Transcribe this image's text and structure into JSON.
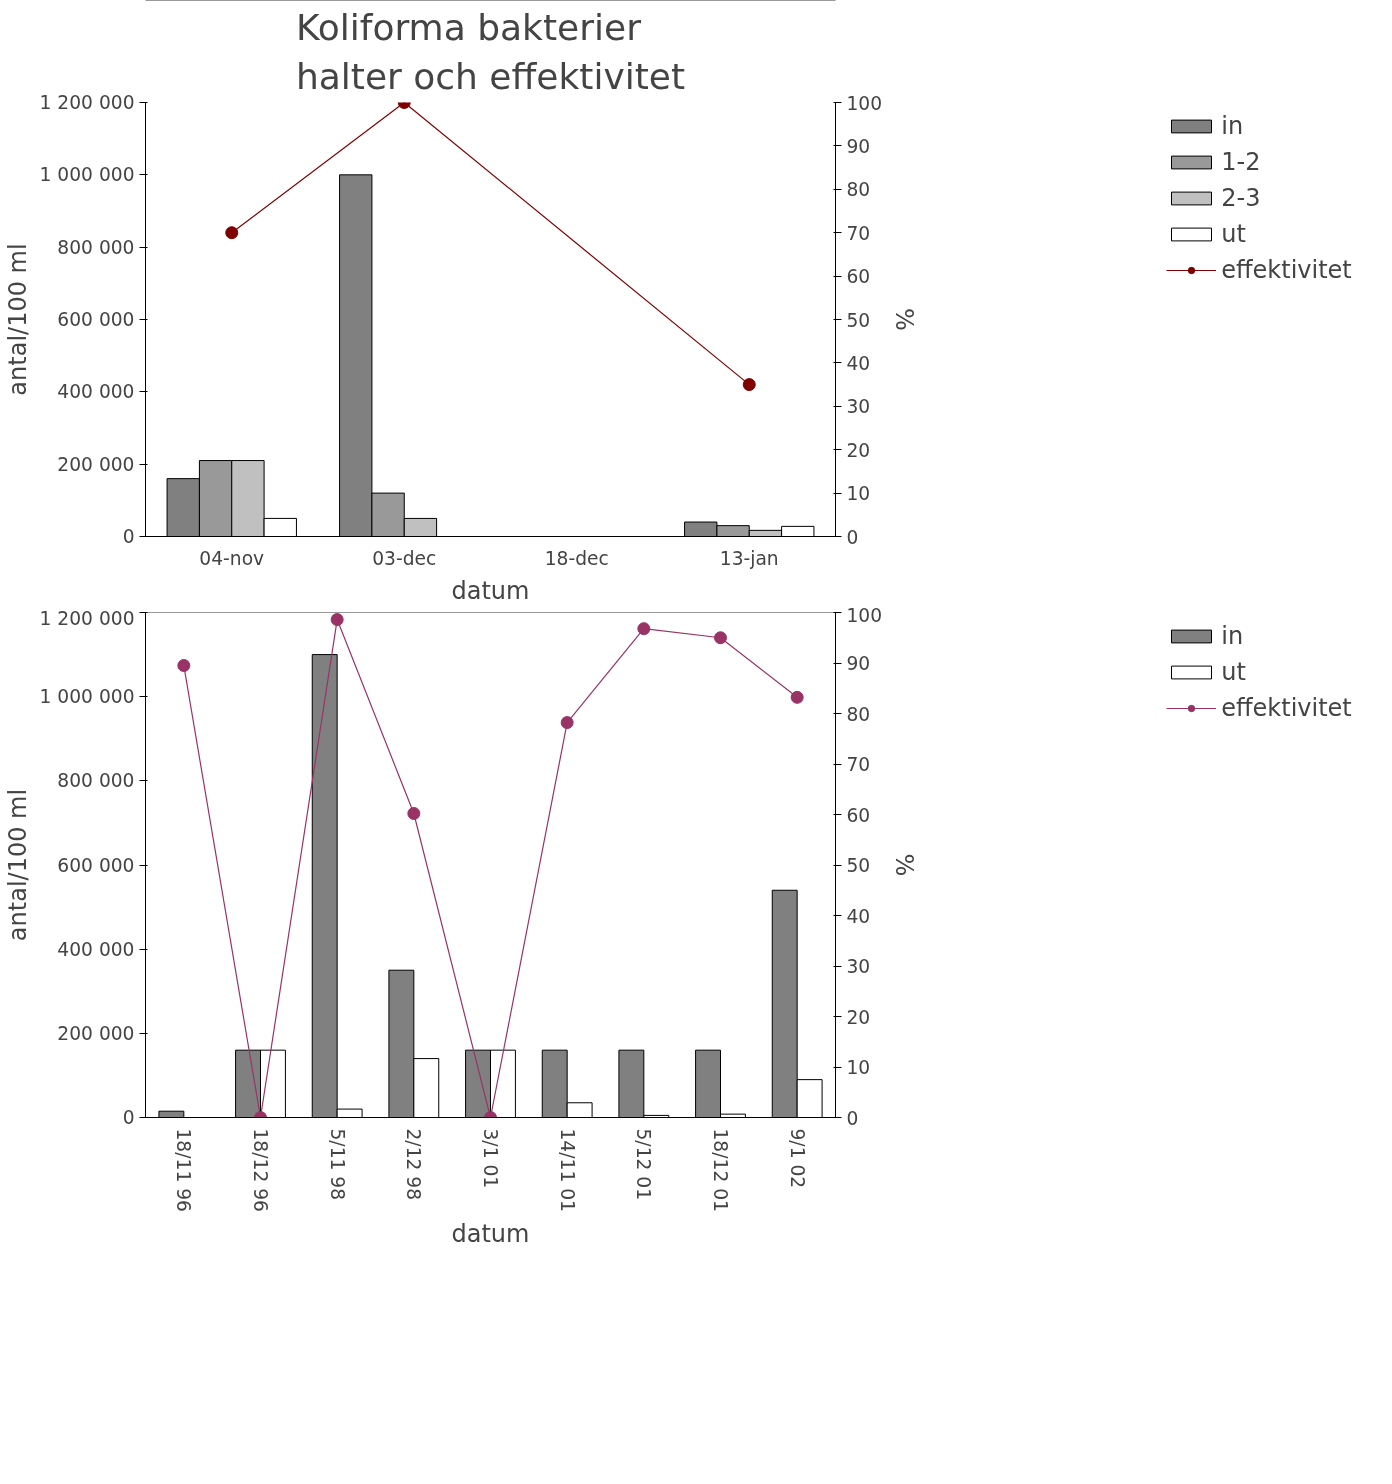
{
  "chart_data": [
    {
      "type": "bar",
      "title": "Koliforma bakterier\nhalter och effektivitet",
      "xlabel": "datum",
      "ylabel": "antal/100 ml",
      "y2label": "%",
      "categories": [
        "04-nov",
        "03-dec",
        "18-dec",
        "13-jan"
      ],
      "series": [
        {
          "name": "in",
          "color": "#808080",
          "values": [
            160000,
            1000000,
            null,
            40000
          ]
        },
        {
          "name": "1-2",
          "color": "#999999",
          "values": [
            210000,
            120000,
            null,
            30000
          ]
        },
        {
          "name": "2-3",
          "color": "#c0c0c0",
          "values": [
            210000,
            50000,
            null,
            17000
          ]
        },
        {
          "name": "ut",
          "color": "#ffffff",
          "values": [
            50000,
            null,
            null,
            28000
          ]
        },
        {
          "name": "effektivitet",
          "type": "line",
          "axis": "y2",
          "color": "#800000",
          "values": [
            70,
            100,
            null,
            35
          ]
        }
      ],
      "ylim": [
        0,
        1200000
      ],
      "yticks": [
        {
          "value": 0,
          "label": "0"
        },
        {
          "value": 200000,
          "label": "200 000"
        },
        {
          "value": 400000,
          "label": "400 000"
        },
        {
          "value": 600000,
          "label": "600 000"
        },
        {
          "value": 800000,
          "label": "800 000"
        },
        {
          "value": 1000000,
          "label": "1 000 000"
        },
        {
          "value": 1200000,
          "label": "1 200 000"
        }
      ],
      "y2lim": [
        0,
        100
      ],
      "y2ticks": [
        0,
        10,
        20,
        30,
        40,
        50,
        60,
        70,
        80,
        90,
        100
      ],
      "marker": "circle",
      "line_style": "solid",
      "grid": false,
      "legend": "right"
    },
    {
      "type": "bar",
      "xlabel": "datum",
      "ylabel": "antal/100 ml",
      "y2label": "%",
      "categories": [
        "18/11 96",
        "18/12 96",
        "5/11 98",
        "2/12 98",
        "3/1 01",
        "14/11 01",
        "5/12 01",
        "18/12 01",
        "9/1 02"
      ],
      "series": [
        {
          "name": "in",
          "color": "#808080",
          "values": [
            15000,
            160000,
            1100000,
            350000,
            160000,
            160000,
            160000,
            160000,
            540000
          ]
        },
        {
          "name": "ut",
          "color": "#ffffff",
          "values": [
            null,
            160000,
            20000,
            140000,
            160000,
            35000,
            5000,
            8000,
            90000
          ]
        },
        {
          "name": "effektivitet",
          "type": "line",
          "axis": "y2",
          "color": "#993366",
          "values": [
            89.5,
            0,
            98.6,
            60.2,
            0,
            78.2,
            96.8,
            95,
            83.2
          ]
        }
      ],
      "ylim": [
        0,
        1200000
      ],
      "yticks": [
        {
          "value": 0,
          "label": "0"
        },
        {
          "value": 200000,
          "label": "200 000"
        },
        {
          "value": 400000,
          "label": "400 000"
        },
        {
          "value": 600000,
          "label": "600 000"
        },
        {
          "value": 800000,
          "label": "800 000"
        },
        {
          "value": 1000000,
          "label": "1 000 000"
        },
        {
          "value": 1200000,
          "label": "1 200 000"
        }
      ],
      "y2lim": [
        0,
        100
      ],
      "y2ticks": [
        0,
        10,
        20,
        30,
        40,
        50,
        60,
        70,
        80,
        90,
        100
      ],
      "marker": "circle",
      "line_style": "solid",
      "grid": false,
      "legend": "right"
    }
  ]
}
